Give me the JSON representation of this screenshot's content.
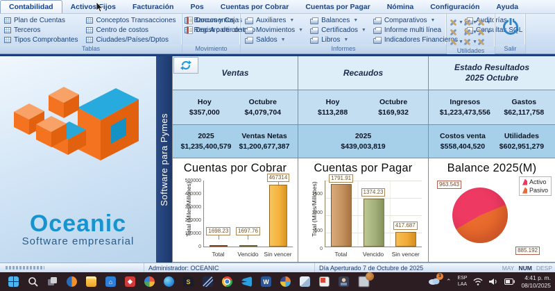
{
  "ribbon": {
    "tabs": [
      "Contabilidad",
      "Activos Fijos",
      "Facturación",
      "Pos",
      "Cuentas por Cobrar",
      "Cuentas por Pagar",
      "Nómina",
      "Configuración",
      "Ayuda"
    ],
    "tablas": {
      "label": "Tablas",
      "items": [
        "Plan de Cuentas",
        "Terceros",
        "Tipos Comprobantes",
        "Conceptos Transacciones",
        "Centro de costos",
        "Ciudades/Países/Dptos",
        "Bancos y Cajas",
        "Registro de control"
      ]
    },
    "movimiento": {
      "label": "Movimiento",
      "items": [
        "Documentos",
        "Doc.A partir de otro"
      ]
    },
    "informes": {
      "label": "Informes",
      "items": [
        "Auxiliares",
        "Movimientos",
        "Saldos",
        "Balances",
        "Certificados",
        "Libros",
        "Comparativos",
        "Informe multi línea",
        "Indicadores Financieros",
        "Auditorías",
        "Consultas SQL"
      ]
    },
    "utilidades": {
      "label": "Utilidades"
    },
    "salir": {
      "label": "Salir"
    }
  },
  "brand": {
    "name": "Oceanic",
    "tagline": "Software empresarial",
    "vertical_text": "Software para Pymes"
  },
  "dashboard": {
    "ventas": {
      "title": "Ventas",
      "stats": [
        {
          "label": "Hoy",
          "value": "$357,000"
        },
        {
          "label": "Octubre",
          "value": "$4,079,704"
        },
        {
          "label": "2025",
          "value": "$1,235,400,579"
        },
        {
          "label": "Ventas Netas",
          "value": "$1,200,677,387"
        }
      ]
    },
    "recaudos": {
      "title": "Recaudos",
      "stats": [
        {
          "label": "Hoy",
          "value": "$113,288"
        },
        {
          "label": "Octubre",
          "value": "$169,932"
        },
        {
          "label": "2025",
          "value": "$439,003,819"
        }
      ]
    },
    "estado": {
      "title_line1": "Estado Resultados",
      "title_line2": "2025 Octubre",
      "stats": [
        {
          "label": "Ingresos",
          "value": "$1,223,473,556"
        },
        {
          "label": "Gastos",
          "value": "$62,117,758"
        },
        {
          "label": "Costos venta",
          "value": "$558,404,520"
        },
        {
          "label": "Utilidades",
          "value": "$602,951,279"
        }
      ]
    }
  },
  "chart_data": [
    {
      "type": "bar",
      "title": "Cuentas por Cobrar",
      "ylabel": "Total (Miles/Millones)",
      "categories": [
        "Total",
        "Vencido",
        "Sin vencer"
      ],
      "values": [
        1698.23,
        1697.76,
        467314
      ],
      "value_labels": [
        "1698.23",
        "1697.76",
        "467314"
      ],
      "yticks": [
        "500000",
        "400000",
        "300000",
        "200000",
        "100000",
        "0"
      ],
      "ylim": [
        0,
        500000
      ],
      "grid": true,
      "bar_colors": [
        "#a34a26",
        "#7e8c55",
        "#f5b33c"
      ]
    },
    {
      "type": "bar",
      "title": "Cuentas por Pagar",
      "ylabel": "Total (Miles/Millones)",
      "categories": [
        "Total",
        "Vencido",
        "Sin vencer"
      ],
      "values": [
        1791.91,
        1374.23,
        417.687
      ],
      "value_labels": [
        "1791.91",
        "1374.23",
        "417.687"
      ],
      "yticks": [
        "1500",
        "1000",
        "500",
        "0"
      ],
      "ylim": [
        0,
        1900
      ],
      "grid": true,
      "bar_colors": [
        "#c4925f",
        "#a3b07b",
        "#f2ab38"
      ]
    },
    {
      "type": "pie",
      "title": "Balance 2025(M)",
      "legend": [
        "Activo",
        "Pasivo"
      ],
      "values": [
        963.543,
        885.192
      ],
      "value_labels": [
        "963.543",
        "885.192"
      ],
      "colors": [
        "#ee3a63",
        "#e96b2d"
      ],
      "legend_position": "top-right"
    }
  ],
  "statusbar": {
    "administrator": "Administrador: OCEANIC",
    "day": "Día Aperturado 7 de Octubre de 2025",
    "indicators": [
      "MAY",
      "NUM",
      "DESP"
    ]
  },
  "taskbar": {
    "badge": "3",
    "lang1": "ESP",
    "lang2": "LAA",
    "time": "4:41 p. m.",
    "date": "08/10/2025"
  },
  "colors": {
    "accent_blue": "#1793cf",
    "navy_strip": "#1c386c",
    "panel_header": "#ddeef9",
    "panel_row1": "#c3ddf1",
    "panel_row2": "#a6cfe9",
    "taskbar_bg": "#2c1d23"
  }
}
